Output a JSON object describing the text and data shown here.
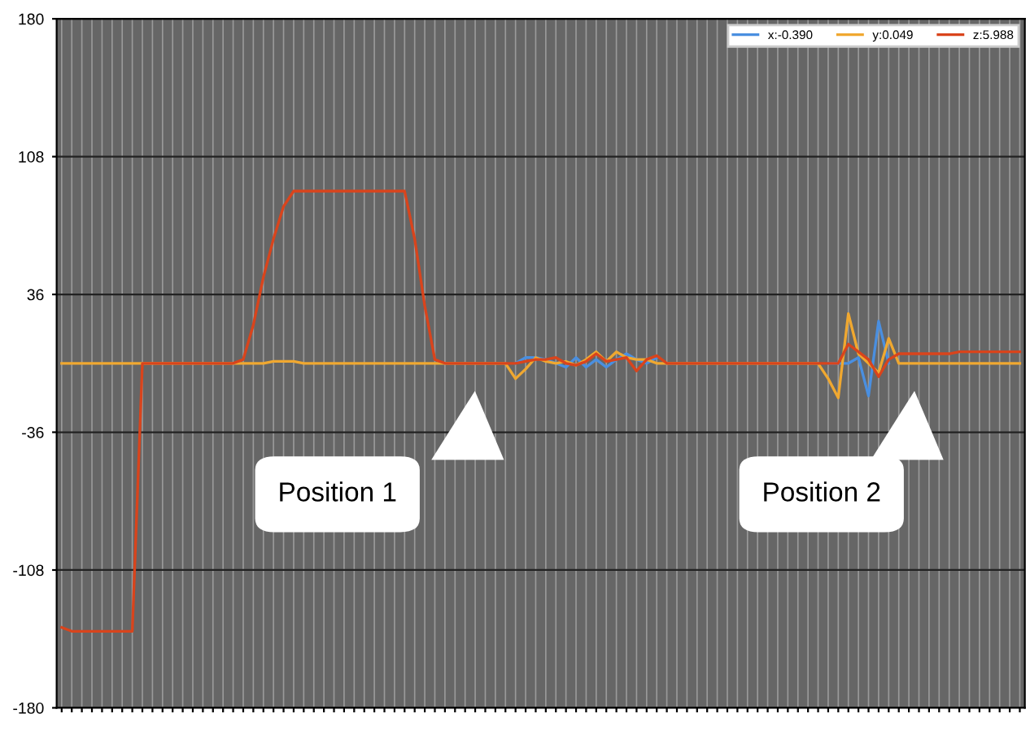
{
  "chart_data": {
    "type": "line",
    "categories": [
      null,
      null,
      null,
      null,
      null,
      null,
      null,
      null,
      null,
      null,
      null,
      null,
      null,
      null,
      null,
      null,
      null,
      null,
      null,
      null,
      null,
      null,
      null,
      null,
      null,
      null,
      null,
      null,
      null,
      null,
      null,
      null,
      null,
      null,
      null,
      null,
      null,
      null,
      null,
      null,
      null,
      null,
      null,
      null,
      null,
      null,
      null,
      null,
      null,
      null,
      null,
      null,
      null,
      null,
      null,
      null,
      null,
      null,
      null,
      null,
      null,
      null,
      null,
      null,
      null,
      null,
      null,
      null,
      null,
      null,
      null,
      null,
      null,
      null,
      null,
      null,
      null,
      null,
      null,
      null,
      null,
      null,
      null,
      null,
      null,
      null,
      null,
      null,
      null,
      null,
      null,
      null,
      null,
      null,
      null,
      null
    ],
    "series": [
      {
        "name": "x:-0.390",
        "color": "#4a8fe0",
        "values": [
          null,
          null,
          null,
          null,
          null,
          null,
          null,
          null,
          null,
          null,
          null,
          null,
          null,
          null,
          null,
          null,
          null,
          null,
          null,
          null,
          null,
          null,
          null,
          null,
          null,
          null,
          null,
          null,
          null,
          null,
          null,
          null,
          null,
          null,
          null,
          null,
          null,
          null,
          null,
          null,
          null,
          null,
          null,
          null,
          null,
          0,
          3,
          3,
          2,
          0,
          -2,
          3,
          -2,
          2,
          -2,
          2,
          5,
          2,
          0,
          3,
          null,
          null,
          null,
          null,
          null,
          null,
          null,
          null,
          null,
          null,
          null,
          null,
          null,
          null,
          null,
          null,
          0,
          0,
          0,
          3,
          -17,
          22,
          0,
          null,
          null,
          null,
          null,
          null,
          null,
          null,
          null,
          null,
          null,
          null,
          null,
          null
        ]
      },
      {
        "name": "y:0.049",
        "color": "#f0a830",
        "values": [
          0,
          0,
          0,
          0,
          0,
          0,
          0,
          0,
          0,
          0,
          0,
          0,
          0,
          0,
          0,
          0,
          0,
          0,
          0,
          0,
          0,
          1,
          1,
          1,
          0,
          0,
          0,
          0,
          0,
          0,
          0,
          0,
          0,
          0,
          0,
          0,
          0,
          0,
          0,
          0,
          0,
          0,
          0,
          0,
          0,
          -8,
          -3,
          3,
          1,
          0,
          1,
          -1,
          2,
          6,
          1,
          6,
          3,
          2,
          2,
          0,
          0,
          0,
          0,
          0,
          0,
          0,
          0,
          0,
          0,
          0,
          0,
          0,
          0,
          0,
          0,
          0,
          -8,
          -18,
          26,
          5,
          0,
          -5,
          13,
          0,
          0,
          0,
          0,
          0,
          0,
          0,
          0,
          0,
          0,
          0,
          0,
          0
        ]
      },
      {
        "name": "z:5.988",
        "color": "#d9441c",
        "values": [
          -138,
          -140,
          -140,
          -140,
          -140,
          -140,
          -140,
          -140,
          0,
          0,
          0,
          0,
          0,
          0,
          0,
          0,
          0,
          0,
          2,
          20,
          45,
          65,
          82,
          90,
          90,
          90,
          90,
          90,
          90,
          90,
          90,
          90,
          90,
          90,
          90,
          65,
          30,
          2,
          0,
          0,
          0,
          0,
          0,
          0,
          0,
          0,
          1,
          2,
          2,
          3,
          0,
          -1,
          1,
          5,
          1,
          2,
          3,
          -4,
          2,
          4,
          0,
          0,
          0,
          0,
          0,
          0,
          0,
          0,
          0,
          0,
          0,
          0,
          0,
          0,
          0,
          0,
          0,
          0,
          10,
          6,
          2,
          -7,
          2,
          5,
          5,
          5,
          5,
          5,
          5,
          6,
          6,
          6,
          6,
          6,
          6,
          6
        ]
      }
    ],
    "ylim": [
      -180,
      180
    ],
    "yticks": [
      -180,
      -108,
      -36,
      36,
      108,
      180
    ],
    "grid": true,
    "legend": "top right",
    "marker": "none",
    "line_style": "solid",
    "annotations": [
      "Position 1",
      "Position 2"
    ]
  }
}
